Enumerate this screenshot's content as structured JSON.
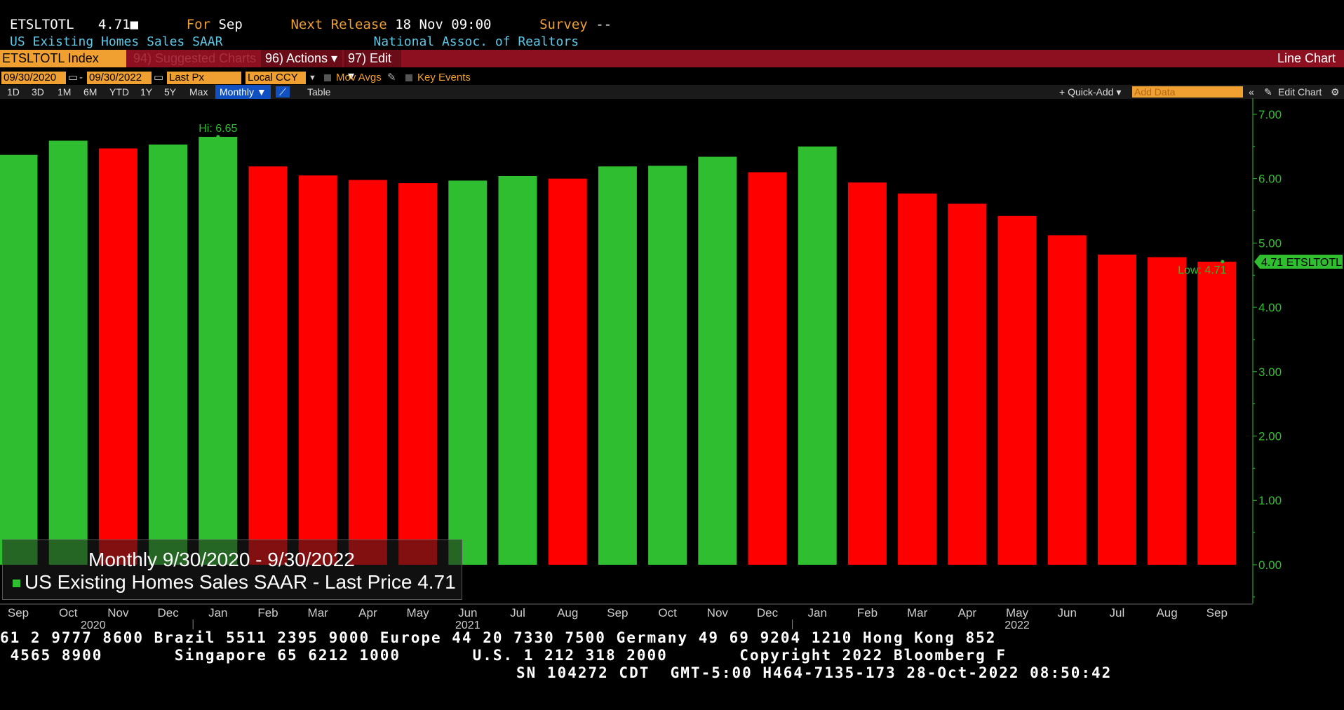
{
  "header": {
    "ticker": "ETSLTOTL",
    "value": "4.71",
    "for_label": "For",
    "for_value": "Sep",
    "next_release_label": "Next Release",
    "next_release_value": "18 Nov 09:00",
    "survey_label": "Survey",
    "survey_value": "--",
    "series_name": "US Existing Homes Sales SAAR",
    "source": "National Assoc. of Realtors"
  },
  "toolbar": {
    "ticker_field": "ETSLTOTL Index",
    "suggested": "94) Suggested Charts",
    "actions": "96) Actions ▾",
    "edit": "97) Edit ▾",
    "chart_type": "Line Chart"
  },
  "controls": {
    "start_date": "09/30/2020",
    "end_date": "09/30/2022",
    "field": "Last Px",
    "currency": "Local CCY",
    "mov_avgs": "Mov Avgs",
    "key_events": "Key Events",
    "periods": [
      "1D",
      "3D",
      "1M",
      "6M",
      "YTD",
      "1Y",
      "5Y",
      "Max"
    ],
    "frequency": "Monthly ▼",
    "table": "Table",
    "quick_add": "+ Quick-Add ▾",
    "add_data_placeholder": "Add Data",
    "edit_chart": "Edit Chart"
  },
  "legend": {
    "title": "Monthly 9/30/2020 - 9/30/2022",
    "series_label": "US Existing Homes Sales SAAR - Last Price",
    "last_value": "4.71"
  },
  "colors": {
    "up": "#2fbe2f",
    "down": "#ff0000",
    "axis": "#2fbe2f",
    "background": "#000000"
  },
  "chart_data": {
    "type": "bar",
    "categories": [
      "Sep",
      "Oct",
      "Nov",
      "Dec",
      "Jan",
      "Feb",
      "Mar",
      "Apr",
      "May",
      "Jun",
      "Jul",
      "Aug",
      "Sep",
      "Oct",
      "Nov",
      "Dec",
      "Jan",
      "Feb",
      "Mar",
      "Apr",
      "May",
      "Jun",
      "Jul",
      "Aug",
      "Sep"
    ],
    "year_labels": [
      "2020",
      "2021",
      "2022"
    ],
    "values": [
      6.37,
      6.59,
      6.47,
      6.53,
      6.65,
      6.19,
      6.05,
      5.98,
      5.93,
      5.97,
      6.04,
      6.0,
      6.19,
      6.2,
      6.34,
      6.1,
      6.5,
      5.94,
      5.77,
      5.61,
      5.42,
      5.12,
      4.82,
      4.78,
      4.71
    ],
    "direction": [
      "up",
      "up",
      "down",
      "up",
      "up",
      "down",
      "down",
      "down",
      "down",
      "up",
      "up",
      "down",
      "up",
      "up",
      "up",
      "down",
      "up",
      "down",
      "down",
      "down",
      "down",
      "down",
      "down",
      "down",
      "down"
    ],
    "y_ticks": [
      "7.00",
      "6.00",
      "5.00",
      "4.00",
      "3.00",
      "2.00",
      "1.00",
      "0.00"
    ],
    "ylim": [
      -0.6,
      7.25
    ],
    "high_label": "Hi: 6.65",
    "low_label": "Low: 4.71",
    "last_tag": "4.71 ETSLTOTL"
  },
  "footer": {
    "line1": "61 2 9777 8600 Brazil 5511 2395 9000 Europe 44 20 7330 7500 Germany 49 69 9204 1210 Hong Kong 852",
    "line2": " 4565 8900       Singapore 65 6212 1000       U.S. 1 212 318 2000       Copyright 2022 Bloomberg F",
    "line3": "SN 104272 CDT  GMT-5:00 H464-7135-173 28-Oct-2022 08:50:42"
  }
}
